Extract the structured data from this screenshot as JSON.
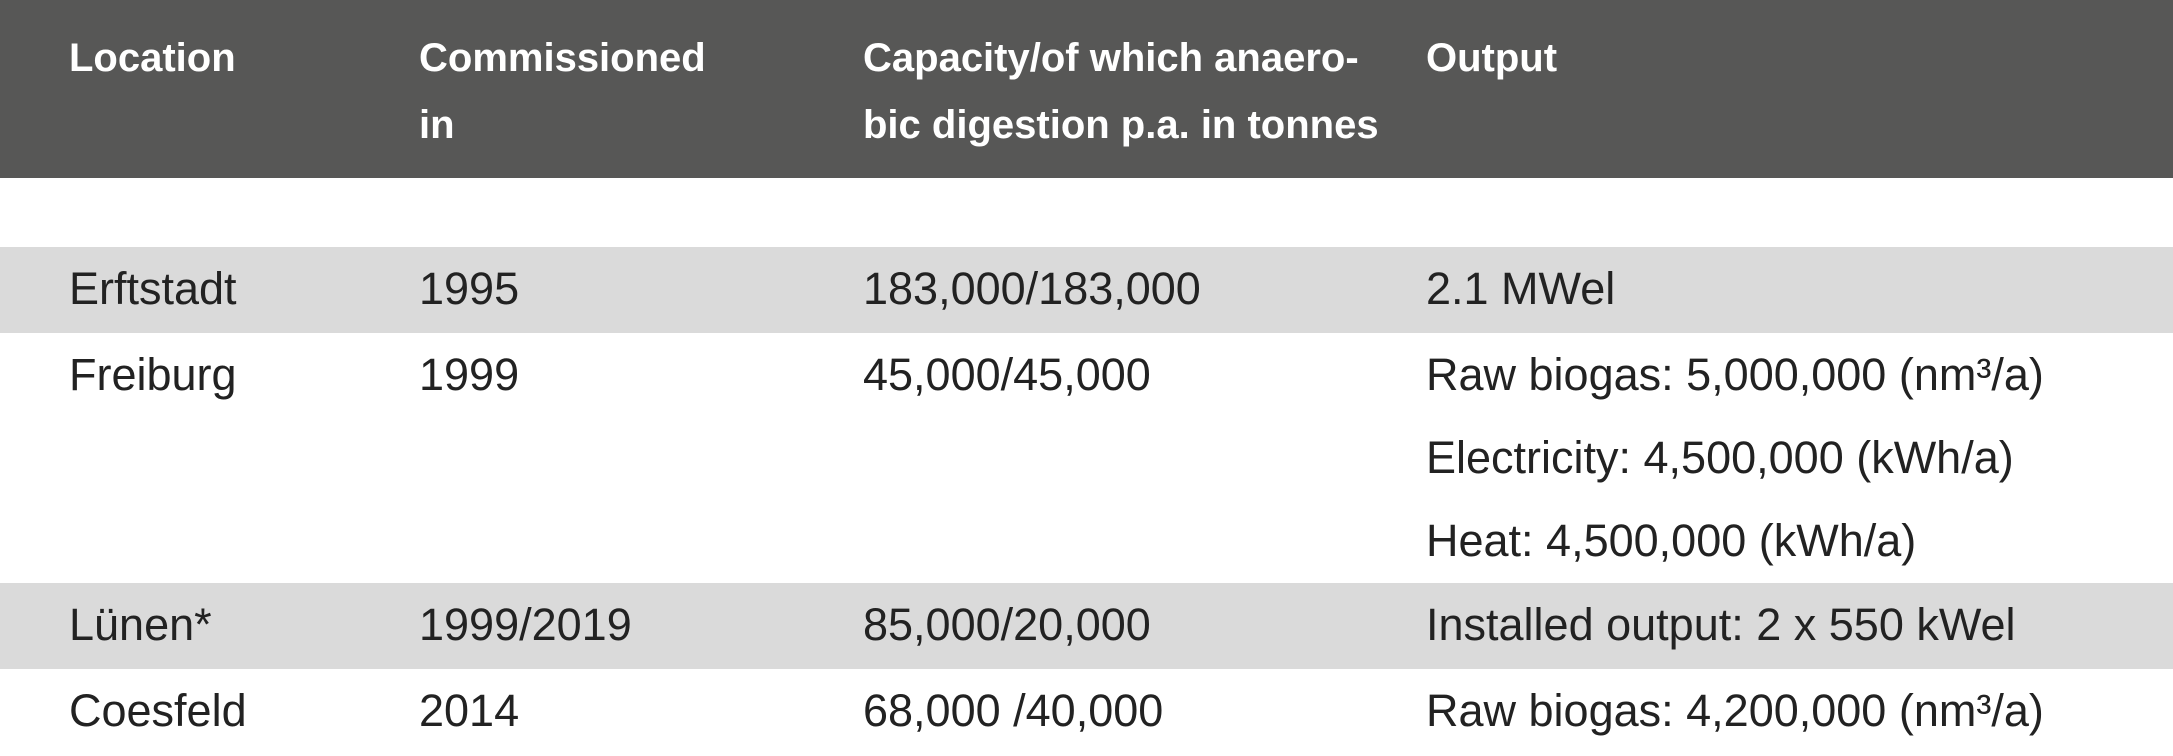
{
  "table": {
    "header": [
      [
        "Location"
      ],
      [
        "Commissioned",
        "in"
      ],
      [
        "Capacity/of which anaero-",
        "bic digestion p.a. in tonnes"
      ],
      [
        "Output"
      ]
    ],
    "rows": [
      [
        [
          "Erftstadt"
        ],
        [
          "1995"
        ],
        [
          "183,000/183,000"
        ],
        [
          "2.1 MWel"
        ]
      ],
      [
        [
          "Freiburg"
        ],
        [
          "1999"
        ],
        [
          "45,000/45,000"
        ],
        [
          "Raw biogas: 5,000,000 (nm³/a)",
          "Electricity: 4,500,000 (kWh/a)",
          "Heat: 4,500,000 (kWh/a)"
        ]
      ],
      [
        [
          "Lünen*"
        ],
        [
          "1999/2019"
        ],
        [
          "85,000/20,000"
        ],
        [
          "Installed output: 2 x 550 kWel"
        ]
      ],
      [
        [
          "Coesfeld"
        ],
        [
          "2014"
        ],
        [
          "68,000 /40,000"
        ],
        [
          "Raw biogas: 4,200,000 (nm³/a)"
        ]
      ]
    ]
  }
}
